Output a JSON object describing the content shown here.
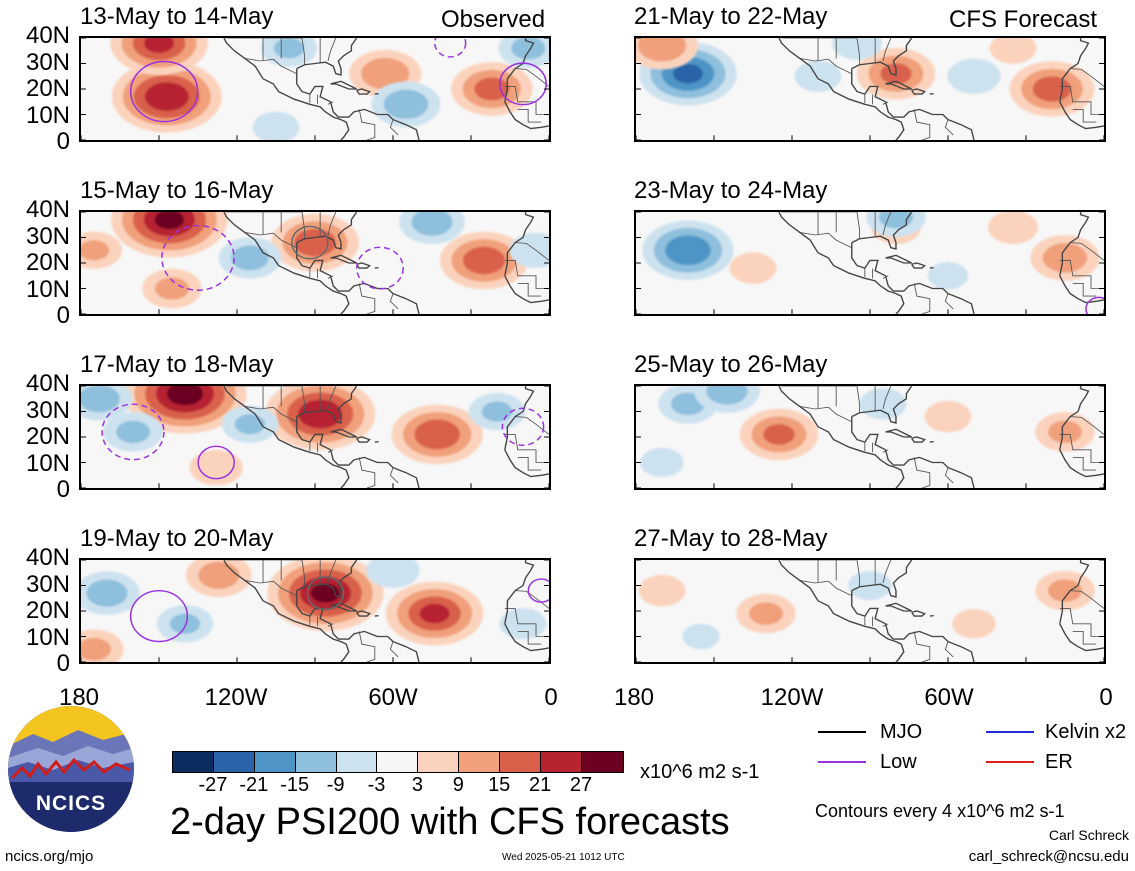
{
  "headers": {
    "observed": "Observed",
    "forecast": "CFS Forecast"
  },
  "lat_labels": [
    "40N",
    "30N",
    "20N",
    "10N",
    "0"
  ],
  "lon_labels": [
    "180",
    "120W",
    "60W",
    "0"
  ],
  "panels": [
    {
      "title": "13-May to 14-May",
      "column": "observed",
      "blobs": [
        {
          "lon": -147,
          "lat": 17,
          "v": 26
        },
        {
          "lon": -150,
          "lat": 38,
          "v": 22
        },
        {
          "lon": -63,
          "lat": 26,
          "v": 14
        },
        {
          "lon": -22,
          "lat": 20,
          "v": 17
        },
        {
          "lon": -55,
          "lat": 14,
          "v": -13
        },
        {
          "lon": -100,
          "lat": 36,
          "v": -9
        },
        {
          "lon": -8,
          "lat": 36,
          "v": -10
        },
        {
          "lon": -105,
          "lat": 5,
          "v": -6
        }
      ],
      "contours": [
        {
          "lon": -148,
          "lat": 19,
          "r": 13,
          "style": "solid"
        },
        {
          "lon": -10,
          "lat": 22,
          "r": 9,
          "style": "solid"
        },
        {
          "lon": -38,
          "lat": 38,
          "r": 6,
          "style": "dashed"
        }
      ]
    },
    {
      "title": "15-May to 16-May",
      "column": "observed",
      "blobs": [
        {
          "lon": -146,
          "lat": 37,
          "v": 28
        },
        {
          "lon": -90,
          "lat": 28,
          "v": 19
        },
        {
          "lon": -25,
          "lat": 21,
          "v": 19
        },
        {
          "lon": -145,
          "lat": 10,
          "v": 10
        },
        {
          "lon": -115,
          "lat": 22,
          "v": -11
        },
        {
          "lon": -45,
          "lat": 36,
          "v": -12
        },
        {
          "lon": -5,
          "lat": 25,
          "v": -8
        },
        {
          "lon": -175,
          "lat": 25,
          "v": 9
        }
      ],
      "contours": [
        {
          "lon": -135,
          "lat": 22,
          "r": 14,
          "style": "dashed"
        },
        {
          "lon": -65,
          "lat": 18,
          "r": 9,
          "style": "dashed"
        },
        {
          "lon": -92,
          "lat": 28,
          "r": 7,
          "style": "solid-gray"
        }
      ]
    },
    {
      "title": "17-May to 18-May",
      "column": "observed",
      "blobs": [
        {
          "lon": -140,
          "lat": 37,
          "v": 30
        },
        {
          "lon": -88,
          "lat": 29,
          "v": 26
        },
        {
          "lon": -43,
          "lat": 21,
          "v": 20
        },
        {
          "lon": -160,
          "lat": 22,
          "v": -10
        },
        {
          "lon": -115,
          "lat": 25,
          "v": -9
        },
        {
          "lon": -20,
          "lat": 30,
          "v": -9
        },
        {
          "lon": -173,
          "lat": 35,
          "v": -12
        },
        {
          "lon": -128,
          "lat": 8,
          "v": 8
        }
      ],
      "contours": [
        {
          "lon": -160,
          "lat": 22,
          "r": 12,
          "style": "dashed"
        },
        {
          "lon": -128,
          "lat": 10,
          "r": 7,
          "style": "solid"
        },
        {
          "lon": -10,
          "lat": 24,
          "r": 8,
          "style": "dashed"
        }
      ]
    },
    {
      "title": "19-May to 20-May",
      "column": "observed",
      "blobs": [
        {
          "lon": -86,
          "lat": 27,
          "v": 28
        },
        {
          "lon": -44,
          "lat": 19,
          "v": 22
        },
        {
          "lon": -127,
          "lat": 34,
          "v": 12
        },
        {
          "lon": -170,
          "lat": 27,
          "v": -12
        },
        {
          "lon": -140,
          "lat": 15,
          "v": -9
        },
        {
          "lon": -60,
          "lat": 36,
          "v": -8
        },
        {
          "lon": -175,
          "lat": 5,
          "v": 10
        },
        {
          "lon": -10,
          "lat": 15,
          "v": -6
        }
      ],
      "contours": [
        {
          "lon": -150,
          "lat": 18,
          "r": 11,
          "style": "solid"
        },
        {
          "lon": -3,
          "lat": 28,
          "r": 5,
          "style": "solid"
        },
        {
          "lon": -86,
          "lat": 27,
          "r": 7,
          "style": "solid-gray"
        }
      ]
    },
    {
      "title": "21-May to 22-May",
      "column": "forecast",
      "blobs": [
        {
          "lon": -160,
          "lat": 26,
          "v": -22
        },
        {
          "lon": -80,
          "lat": 26,
          "v": 16
        },
        {
          "lon": -20,
          "lat": 20,
          "v": 18
        },
        {
          "lon": -170,
          "lat": 37,
          "v": 14
        },
        {
          "lon": -110,
          "lat": 25,
          "v": -6
        },
        {
          "lon": -50,
          "lat": 25,
          "v": -8
        },
        {
          "lon": -95,
          "lat": 38,
          "v": -7
        },
        {
          "lon": -35,
          "lat": 36,
          "v": 6
        }
      ],
      "contours": []
    },
    {
      "title": "23-May to 24-May",
      "column": "forecast",
      "blobs": [
        {
          "lon": -160,
          "lat": 25,
          "v": -20
        },
        {
          "lon": -15,
          "lat": 22,
          "v": 13
        },
        {
          "lon": -80,
          "lat": 34,
          "v": 7
        },
        {
          "lon": -135,
          "lat": 18,
          "v": 6
        },
        {
          "lon": -80,
          "lat": 38,
          "v": -10
        },
        {
          "lon": -35,
          "lat": 34,
          "v": 7
        },
        {
          "lon": -60,
          "lat": 15,
          "v": -4
        }
      ],
      "contours": [
        {
          "lon": -2,
          "lat": 2,
          "r": 5,
          "style": "solid"
        }
      ]
    },
    {
      "title": "25-May to 26-May",
      "column": "forecast",
      "blobs": [
        {
          "lon": -125,
          "lat": 21,
          "v": 16
        },
        {
          "lon": -160,
          "lat": 33,
          "v": -10
        },
        {
          "lon": -145,
          "lat": 38,
          "v": -12
        },
        {
          "lon": -85,
          "lat": 33,
          "v": -6
        },
        {
          "lon": -15,
          "lat": 22,
          "v": 10
        },
        {
          "lon": -60,
          "lat": 28,
          "v": 6
        },
        {
          "lon": -170,
          "lat": 10,
          "v": -5
        }
      ],
      "contours": []
    },
    {
      "title": "27-May to 28-May",
      "column": "forecast",
      "blobs": [
        {
          "lon": -130,
          "lat": 19,
          "v": 10
        },
        {
          "lon": -15,
          "lat": 28,
          "v": 10
        },
        {
          "lon": -170,
          "lat": 28,
          "v": 6
        },
        {
          "lon": -90,
          "lat": 30,
          "v": -5
        },
        {
          "lon": -50,
          "lat": 15,
          "v": 5
        },
        {
          "lon": -155,
          "lat": 10,
          "v": -3
        }
      ],
      "contours": []
    }
  ],
  "colorbar": {
    "colors": [
      "#0b2c5e",
      "#2b63a8",
      "#4e95c6",
      "#8ebfdd",
      "#cde2ef",
      "#f6f6f6",
      "#fbd3bd",
      "#f0a07a",
      "#d9614b",
      "#b72430",
      "#6c0121"
    ],
    "ticks": [
      "-27",
      "-21",
      "-15",
      "-9",
      "-3",
      "3",
      "9",
      "15",
      "21",
      "27"
    ],
    "units": "x10^6 m2 s-1"
  },
  "legend": {
    "mjo_label": "MJO",
    "mjo_color": "#000000",
    "kelvin_label": "Kelvin x2",
    "kelvin_color": "#1f2bd6",
    "low_label": "Low",
    "low_color": "#9b30e0",
    "er_label": "ER",
    "er_color": "#e02020"
  },
  "main_title": "2-day PSI200 with CFS forecasts",
  "contours_note": "Contours every 4 x10^6 m2 s-1",
  "author": "Carl Schreck",
  "email": "carl_schreck@ncsu.edu",
  "site": "ncics.org/mjo",
  "timestamp": "Wed 2025-05-21 1012 UTC",
  "logo_text": "NCICS",
  "chart_data": [
    {
      "type": "heatmap",
      "title": "13-May to 14-May",
      "xlabel": "",
      "ylabel": "",
      "xlim": [
        -180,
        0
      ],
      "ylim": [
        0,
        40
      ],
      "x_ticks": [
        "180",
        "120W",
        "60W",
        "0"
      ],
      "y_ticks": [
        "0",
        "10N",
        "20N",
        "30N",
        "40N"
      ],
      "series": [
        {
          "name": "Observed",
          "values": [
            [
              -147,
              17,
              26
            ],
            [
              -150,
              38,
              22
            ],
            [
              -63,
              26,
              14
            ],
            [
              -22,
              20,
              17
            ],
            [
              -55,
              14,
              -13
            ],
            [
              -100,
              36,
              -9
            ]
          ]
        }
      ]
    },
    {
      "type": "heatmap",
      "title": "15-May to 16-May",
      "xlim": [
        -180,
        0
      ],
      "ylim": [
        0,
        40
      ],
      "series": [
        {
          "name": "Observed",
          "values": [
            [
              -146,
              37,
              28
            ],
            [
              -90,
              28,
              19
            ],
            [
              -25,
              21,
              19
            ],
            [
              -145,
              10,
              10
            ],
            [
              -115,
              22,
              -11
            ],
            [
              -45,
              36,
              -12
            ]
          ]
        }
      ]
    },
    {
      "type": "heatmap",
      "title": "17-May to 18-May",
      "xlim": [
        -180,
        0
      ],
      "ylim": [
        0,
        40
      ],
      "series": [
        {
          "name": "Observed",
          "values": [
            [
              -140,
              37,
              30
            ],
            [
              -88,
              29,
              26
            ],
            [
              -43,
              21,
              20
            ],
            [
              -160,
              22,
              -10
            ],
            [
              -115,
              25,
              -9
            ],
            [
              -20,
              30,
              -9
            ]
          ]
        }
      ]
    },
    {
      "type": "heatmap",
      "title": "19-May to 20-May",
      "xlim": [
        -180,
        0
      ],
      "ylim": [
        0,
        40
      ],
      "series": [
        {
          "name": "Observed",
          "values": [
            [
              -86,
              27,
              28
            ],
            [
              -44,
              19,
              22
            ],
            [
              -127,
              34,
              12
            ],
            [
              -170,
              27,
              -12
            ],
            [
              -140,
              15,
              -9
            ]
          ]
        }
      ]
    },
    {
      "type": "heatmap",
      "title": "21-May to 22-May",
      "xlim": [
        -180,
        0
      ],
      "ylim": [
        0,
        40
      ],
      "series": [
        {
          "name": "CFS Forecast",
          "values": [
            [
              -160,
              26,
              -22
            ],
            [
              -80,
              26,
              16
            ],
            [
              -20,
              20,
              18
            ],
            [
              -170,
              37,
              14
            ]
          ]
        }
      ]
    },
    {
      "type": "heatmap",
      "title": "23-May to 24-May",
      "xlim": [
        -180,
        0
      ],
      "ylim": [
        0,
        40
      ],
      "series": [
        {
          "name": "CFS Forecast",
          "values": [
            [
              -160,
              25,
              -20
            ],
            [
              -15,
              22,
              13
            ],
            [
              -80,
              34,
              7
            ],
            [
              -135,
              18,
              6
            ]
          ]
        }
      ]
    },
    {
      "type": "heatmap",
      "title": "25-May to 26-May",
      "xlim": [
        -180,
        0
      ],
      "ylim": [
        0,
        40
      ],
      "series": [
        {
          "name": "CFS Forecast",
          "values": [
            [
              -125,
              21,
              16
            ],
            [
              -160,
              33,
              -10
            ],
            [
              -145,
              38,
              -12
            ],
            [
              -15,
              22,
              10
            ]
          ]
        }
      ]
    },
    {
      "type": "heatmap",
      "title": "27-May to 28-May",
      "xlim": [
        -180,
        0
      ],
      "ylim": [
        0,
        40
      ],
      "series": [
        {
          "name": "CFS Forecast",
          "values": [
            [
              -130,
              19,
              10
            ],
            [
              -15,
              28,
              10
            ],
            [
              -170,
              28,
              6
            ],
            [
              -90,
              30,
              -5
            ]
          ]
        }
      ]
    }
  ]
}
